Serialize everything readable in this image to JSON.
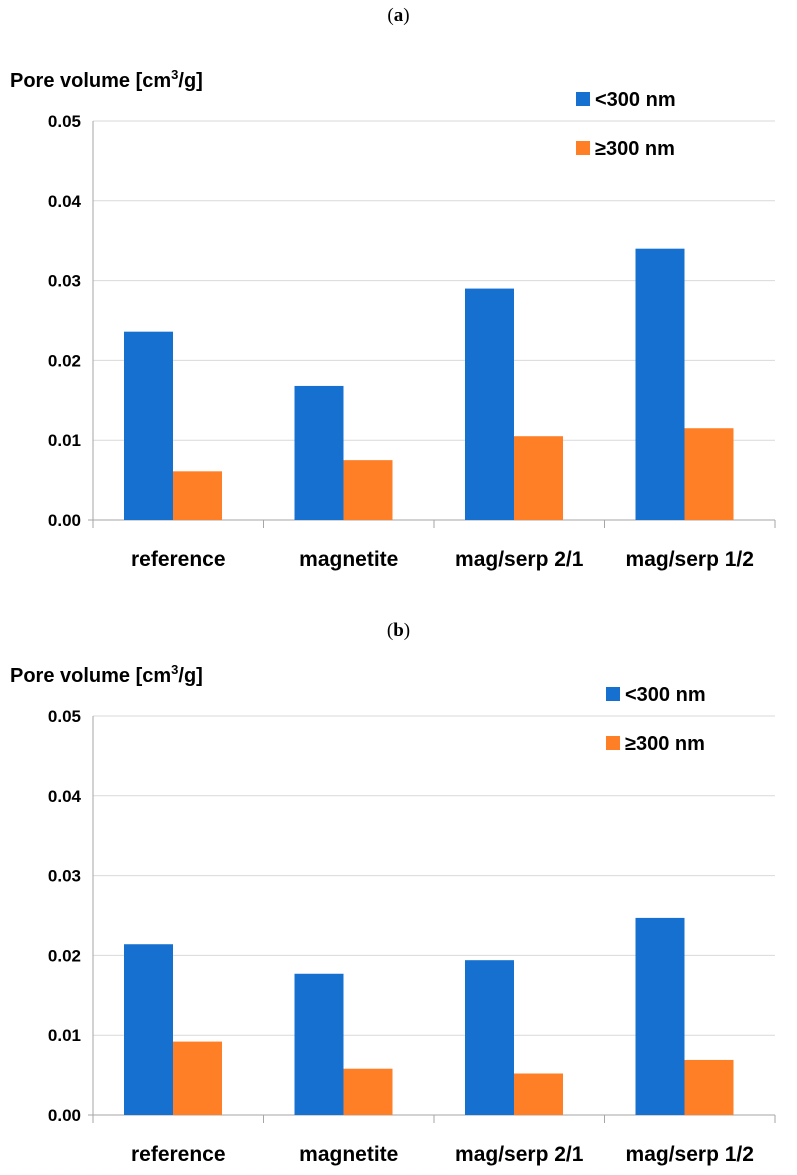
{
  "panels": [
    {
      "open": "(",
      "letter": "a",
      "close": ")"
    },
    {
      "open": "(",
      "letter": "b",
      "close": ")"
    }
  ],
  "colors": {
    "small": "#1670d0",
    "large": "#ff7f27",
    "grid": "#d9d9d9",
    "axis": "#a6a6a6"
  },
  "chart_data": [
    {
      "type": "bar",
      "ylabel_main": "Pore volume [cm",
      "ylabel_sup": "3",
      "ylabel_end": "/g]",
      "categories": [
        "reference",
        "magnetite",
        "mag/serp 2/1",
        "mag/serp 1/2"
      ],
      "series": [
        {
          "name": "<300 nm",
          "values": [
            0.0236,
            0.0168,
            0.029,
            0.034
          ]
        },
        {
          "name": "≥300 nm",
          "values": [
            0.0061,
            0.0075,
            0.0105,
            0.0115
          ]
        }
      ],
      "ylim": [
        0,
        0.05
      ],
      "yticks": [
        "0.00",
        "0.01",
        "0.02",
        "0.03",
        "0.04",
        "0.05"
      ],
      "grid": true,
      "legend": "top-right"
    },
    {
      "type": "bar",
      "ylabel_main": "Pore volume [cm",
      "ylabel_sup": "3",
      "ylabel_end": "/g]",
      "categories": [
        "reference",
        "magnetite",
        "mag/serp 2/1",
        "mag/serp 1/2"
      ],
      "series": [
        {
          "name": "<300 nm",
          "values": [
            0.0214,
            0.0177,
            0.0194,
            0.0247
          ]
        },
        {
          "name": "≥300 nm",
          "values": [
            0.0092,
            0.0058,
            0.0052,
            0.0069
          ]
        }
      ],
      "ylim": [
        0,
        0.05
      ],
      "yticks": [
        "0.00",
        "0.01",
        "0.02",
        "0.03",
        "0.04",
        "0.05"
      ],
      "grid": true,
      "legend": "top-right"
    }
  ]
}
